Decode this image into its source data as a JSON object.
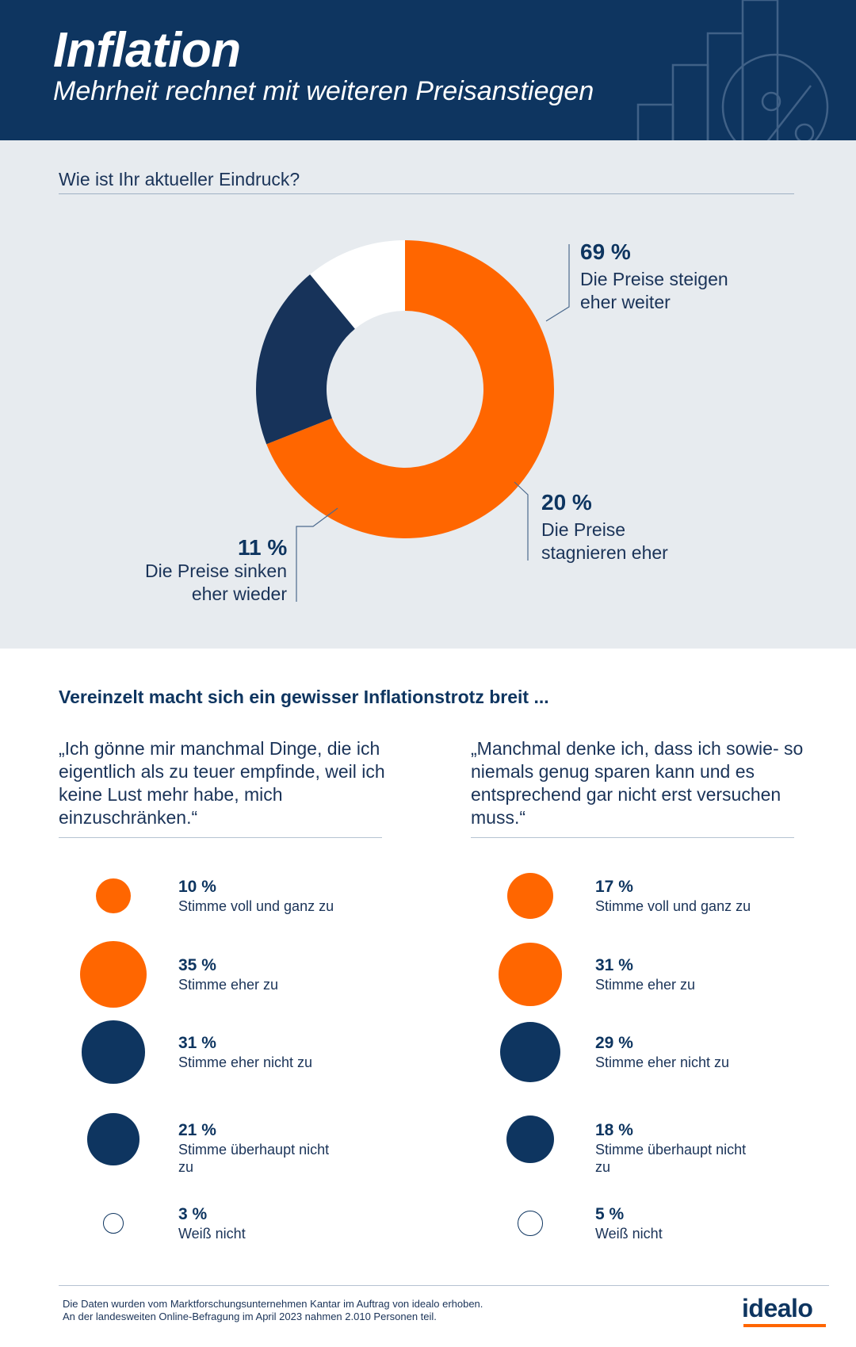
{
  "header": {
    "title": "Inflation",
    "subtitle": "Mehrheit rechnet mit weiteren Preisanstiegen",
    "decor_icon": "percent-chart-icon"
  },
  "colors": {
    "navy": "#0e3560",
    "dark_slice": "#17335a",
    "orange": "#ff6600",
    "background_light": "#e7ebef",
    "white": "#ffffff"
  },
  "chart_data": [
    {
      "type": "pie",
      "title": "Wie ist Ihr aktueller Eindruck?",
      "style": "donut",
      "slices": [
        {
          "pct_label": "69 %",
          "value": 69,
          "line1": "Die Preise steigen",
          "line2": "eher weiter",
          "color": "#ff6600"
        },
        {
          "pct_label": "20 %",
          "value": 20,
          "line1": "Die Preise",
          "line2": "stagnieren eher",
          "color": "#17335a"
        },
        {
          "pct_label": "11 %",
          "value": 11,
          "line1": "Die Preise sinken",
          "line2": "eher wieder",
          "color": "#ffffff"
        }
      ]
    },
    {
      "type": "bubble",
      "title": "„Ich gönne mir manchmal Dinge, die ich eigentlich als zu teuer empfinde, weil ich keine Lust mehr habe, mich einzuschränken.“",
      "responses": [
        {
          "pct_label": "10 %",
          "value": 10,
          "label": "Stimme voll und ganz zu",
          "color": "#ff6600"
        },
        {
          "pct_label": "35 %",
          "value": 35,
          "label": "Stimme eher zu",
          "color": "#ff6600"
        },
        {
          "pct_label": "31 %",
          "value": 31,
          "label": "Stimme eher nicht zu",
          "color": "#0e3560"
        },
        {
          "pct_label": "21 %",
          "value": 21,
          "label": "Stimme überhaupt nicht zu",
          "color": "#0e3560"
        },
        {
          "pct_label": "3 %",
          "value": 3,
          "label": "Weiß nicht",
          "color": "#ffffff"
        }
      ]
    },
    {
      "type": "bubble",
      "title": "„Manchmal denke ich, dass ich sowie- so niemals genug sparen kann und es entsprechend gar nicht erst versuchen muss.“",
      "responses": [
        {
          "pct_label": "17 %",
          "value": 17,
          "label": "Stimme voll und ganz zu",
          "color": "#ff6600"
        },
        {
          "pct_label": "31 %",
          "value": 31,
          "label": "Stimme eher zu",
          "color": "#ff6600"
        },
        {
          "pct_label": "29 %",
          "value": 29,
          "label": "Stimme eher nicht zu",
          "color": "#0e3560"
        },
        {
          "pct_label": "18 %",
          "value": 18,
          "label": "Stimme überhaupt nicht zu",
          "color": "#0e3560"
        },
        {
          "pct_label": "5 %",
          "value": 5,
          "label": "Weiß nicht",
          "color": "#ffffff"
        }
      ]
    }
  ],
  "section2": {
    "title": "Vereinzelt macht sich ein gewisser Inflationstrotz breit ..."
  },
  "footer": {
    "line1": "Die Daten wurden vom Marktforschungsunternehmen Kantar im Auftrag von idealo erhoben.",
    "line2": "An der landesweiten Online-Befragung im April 2023 nahmen 2.010 Personen teil.",
    "logo": "idealo"
  }
}
